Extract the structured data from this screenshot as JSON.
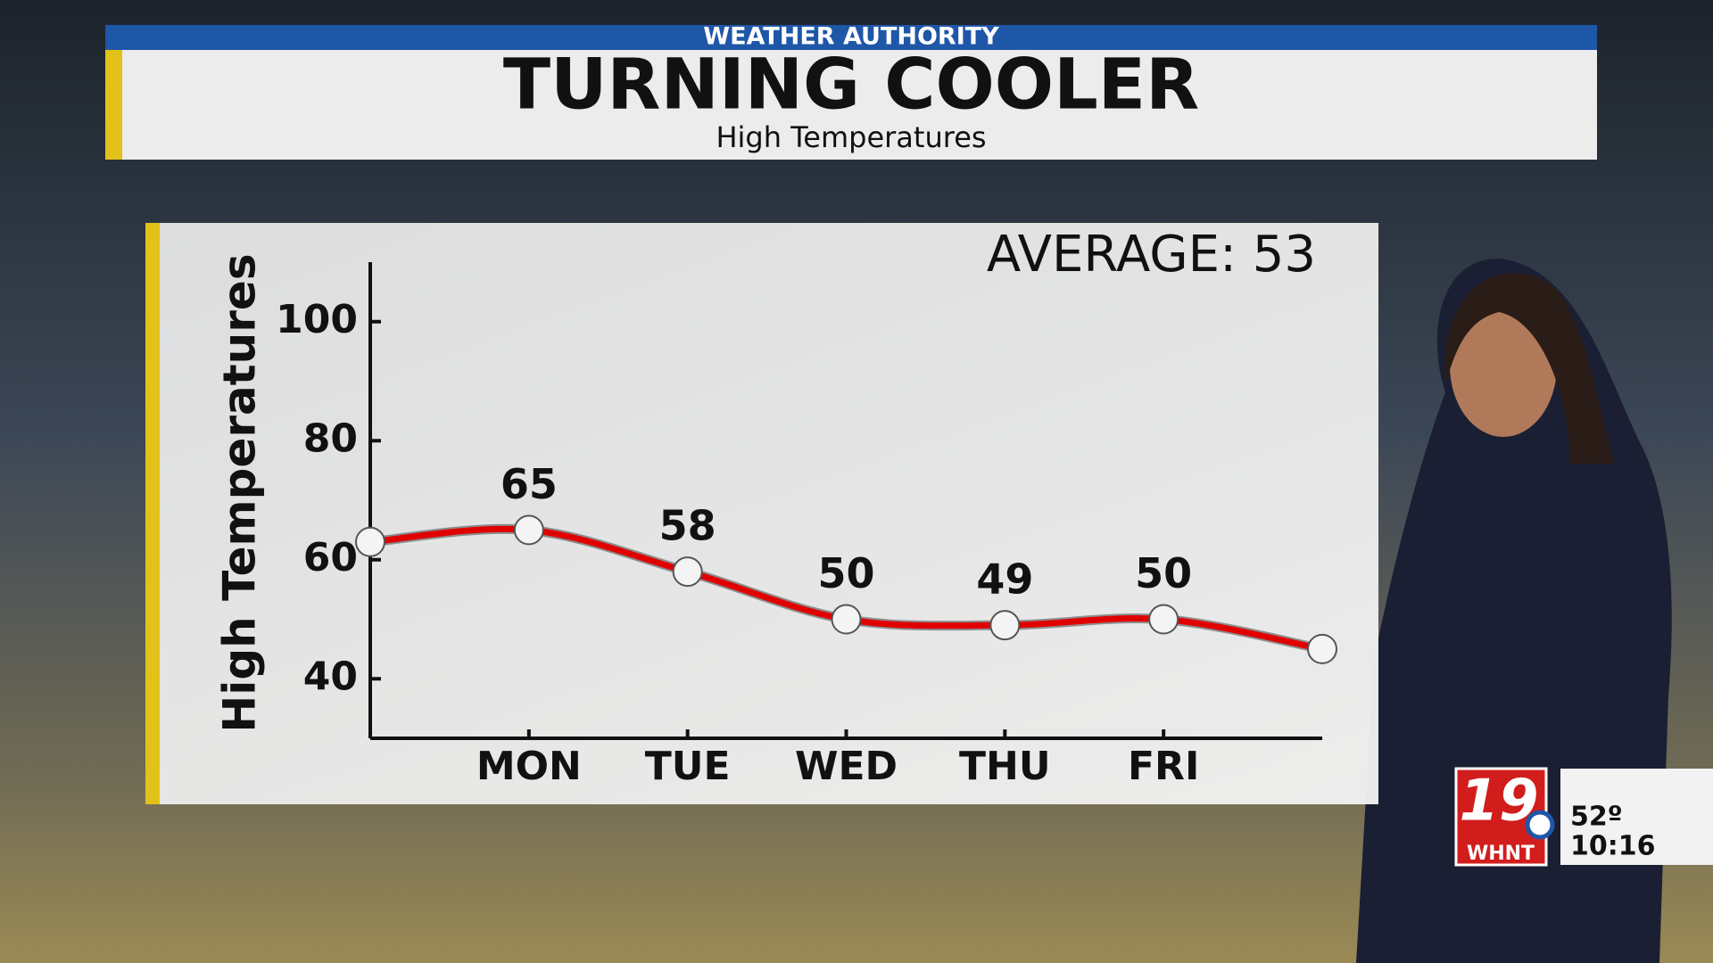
{
  "header": {
    "kicker": "WEATHER AUTHORITY",
    "title": "TURNING COOLER",
    "subtitle": "High Temperatures"
  },
  "chart_data": {
    "type": "line",
    "y_label": "High Temperatures",
    "annotation": "AVERAGE: 53",
    "categories": [
      null,
      "MON",
      "TUE",
      "WED",
      "THU",
      "FRI",
      null
    ],
    "values": [
      63,
      65,
      58,
      50,
      49,
      50,
      45
    ],
    "color": "#e00000",
    "ylim": [
      30,
      110
    ],
    "yticks": [
      40,
      60,
      80,
      100
    ]
  },
  "bug": {
    "channel": "19",
    "station": "WHNT",
    "temperature": "52º",
    "time": "10:16"
  }
}
